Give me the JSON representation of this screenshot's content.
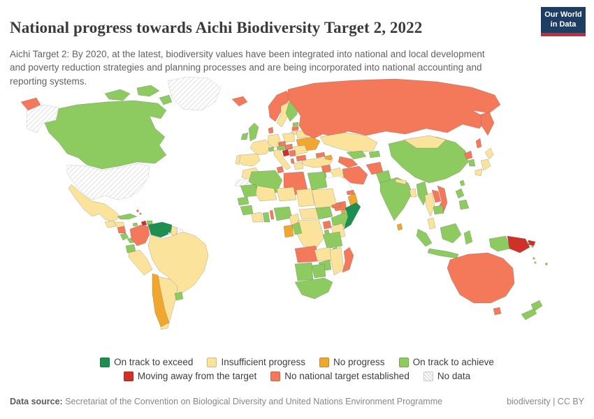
{
  "header": {
    "title": "National progress towards Aichi Biodiversity Target 2, 2022",
    "subtitle": "Aichi Target 2: By 2020, at the latest, biodiversity values have been integrated into national and local development and poverty reduction strategies and planning processes and are being incorporated into national accounting and reporting systems."
  },
  "logo": {
    "line1": "Our World",
    "line2": "in Data",
    "bg_color": "#1d3d63",
    "bar_color": "#bf2e3e"
  },
  "legend": {
    "rows": [
      [
        {
          "label": "On track to exceed",
          "color": "#1d8f50"
        },
        {
          "label": "Insufficient progress",
          "color": "#fbe39c"
        },
        {
          "label": "No progress",
          "color": "#f0a72f"
        },
        {
          "label": "On track to achieve",
          "color": "#8dcb61"
        }
      ],
      [
        {
          "label": "Moving away from the target",
          "color": "#cf3129"
        },
        {
          "label": "No national target established",
          "color": "#f4795b"
        },
        {
          "label": "No data",
          "color": "hatch"
        }
      ]
    ]
  },
  "footer": {
    "datasource_label": "Data source:",
    "datasource_text": " Secretariat of the Convention on Biological Diversity and United Nations Environment Programme",
    "license": "biodiversity | CC BY"
  },
  "chart_data": {
    "type": "choropleth",
    "title": "National progress towards Aichi Biodiversity Target 2",
    "year": "2022",
    "categories": [
      "On track to exceed",
      "Insufficient progress",
      "No progress",
      "On track to achieve",
      "Moving away from the target",
      "No national target established",
      "No data"
    ],
    "category_colors": {
      "On track to exceed": "#1d8f50",
      "Insufficient progress": "#fbe39c",
      "No progress": "#f0a72f",
      "On track to achieve": "#8dcb61",
      "Moving away from the target": "#cf3129",
      "No national target established": "#f4795b",
      "No data": "hatch"
    },
    "countries": {
      "United States": "No data",
      "Greenland": "No data",
      "Suriname": "No data",
      "Western Sahara": "No data",
      "Venezuela": "On track to exceed",
      "Somalia": "On track to exceed",
      "Haiti": "Moving away from the target",
      "Croatia": "Moving away from the target",
      "Papua New Guinea": "Moving away from the target",
      "Chile": "No progress",
      "Ukraine": "No progress",
      "Azerbaijan": "No progress",
      "Oman": "No progress",
      "Djibouti": "No progress",
      "Gabon": "No progress",
      "Sri Lanka": "No progress",
      "Russia": "No national target established",
      "Iceland": "No national target established",
      "Norway": "No national target established",
      "Denmark": "No national target established",
      "Latvia": "No national target established",
      "Czechia": "No national target established",
      "Hungary": "No national target established",
      "Serbia": "No national target established",
      "Bulgaria": "No national target established",
      "Albania": "No national target established",
      "Tunisia": "No national target established",
      "Libya": "No national target established",
      "Benin": "No national target established",
      "Eritrea": "No national target established",
      "Uganda": "No national target established",
      "Angola": "No national target established",
      "Madagascar": "No national target established",
      "Georgia": "No national target established",
      "Syria": "No national target established",
      "Iran": "No national target established",
      "Afghanistan": "No national target established",
      "Turkmenistan": "No national target established",
      "United Arab Emirates": "No national target established",
      "Yemen": "No national target established",
      "North Korea": "No national target established",
      "Vietnam": "No national target established",
      "Laos": "No national target established",
      "Nicaragua": "No national target established",
      "Colombia": "No national target established",
      "Bahamas": "No national target established",
      "Australia": "No national target established",
      "Canada": "On track to achieve",
      "Cuba": "On track to achieve",
      "Jamaica": "On track to achieve",
      "Dominican Republic": "On track to achieve",
      "Costa Rica": "On track to achieve",
      "Panama": "On track to achieve",
      "Ecuador": "On track to achieve",
      "Uruguay": "On track to achieve",
      "United Kingdom": "On track to achieve",
      "Ireland": "On track to achieve",
      "Finland": "On track to achieve",
      "Estonia": "On track to achieve",
      "Switzerland": "On track to achieve",
      "Austria": "On track to achieve",
      "Jordan": "On track to achieve",
      "Uzbekistan": "On track to achieve",
      "Kyrgyzstan": "On track to achieve",
      "Pakistan": "On track to achieve",
      "India": "On track to achieve",
      "China": "On track to achieve",
      "South Korea": "On track to achieve",
      "Taiwan": "On track to achieve",
      "Myanmar": "On track to achieve",
      "Cambodia": "On track to achieve",
      "Philippines": "On track to achieve",
      "Indonesia": "On track to achieve",
      "New Zealand": "On track to achieve",
      "Solomon Islands": "On track to achieve",
      "Vanuatu": "On track to achieve",
      "Fiji": "On track to achieve",
      "Senegal": "On track to achieve",
      "Guinea": "On track to achieve",
      "Ghana": "On track to achieve",
      "Nigeria": "On track to achieve",
      "South Sudan": "On track to achieve",
      "Ethiopia": "On track to achieve",
      "Rwanda": "On track to achieve",
      "Tanzania": "On track to achieve",
      "Malawi": "On track to achieve",
      "Zimbabwe": "On track to achieve",
      "Namibia": "On track to achieve",
      "Botswana": "On track to achieve",
      "South Africa": "On track to achieve",
      "Congo": "On track to achieve",
      "Algeria": "On track to achieve",
      "Egypt": "On track to achieve",
      "Mauritania": "On track to achieve",
      "Mexico": "Insufficient progress",
      "Guatemala": "Insufficient progress",
      "Honduras": "Insufficient progress",
      "Guyana": "Insufficient progress",
      "Brazil": "Insufficient progress",
      "Peru": "Insufficient progress",
      "Bolivia": "Insufficient progress",
      "Paraguay": "Insufficient progress",
      "Argentina": "Insufficient progress",
      "Trinidad and Tobago": "Insufficient progress",
      "Sweden": "Insufficient progress",
      "Germany": "Insufficient progress",
      "France": "Insufficient progress",
      "Spain": "Insufficient progress",
      "Portugal": "Insufficient progress",
      "Italy": "Insufficient progress",
      "Poland": "Insufficient progress",
      "Lithuania": "Insufficient progress",
      "Belarus": "Insufficient progress",
      "Romania": "Insufficient progress",
      "Greece": "Insufficient progress",
      "Turkey": "Insufficient progress",
      "Iraq": "Insufficient progress",
      "Kazakhstan": "Insufficient progress",
      "Mongolia": "Insufficient progress",
      "Japan": "Insufficient progress",
      "Nepal": "Insufficient progress",
      "Bangladesh": "Insufficient progress",
      "Thailand": "Insufficient progress",
      "Malaysia": "Insufficient progress",
      "Morocco": "Insufficient progress",
      "Mali": "Insufficient progress",
      "Niger": "Insufficient progress",
      "Chad": "Insufficient progress",
      "Sudan": "Insufficient progress",
      "Kenya": "Insufficient progress",
      "Cameroon": "Insufficient progress",
      "Central African Republic": "Insufficient progress",
      "Democratic Republic of Congo": "Insufficient progress",
      "Ivory Coast": "Insufficient progress",
      "Zambia": "Insufficient progress",
      "Mozambique": "Insufficient progress"
    }
  }
}
